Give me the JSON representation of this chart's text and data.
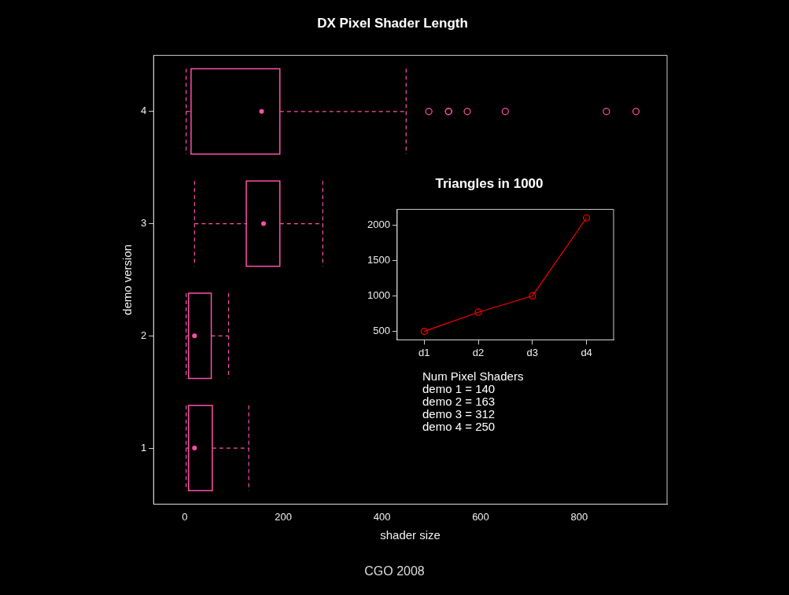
{
  "chart_data": [
    {
      "type": "box",
      "title": "DX Pixel Shader Length",
      "xlabel": "shader size",
      "ylabel": "demo version",
      "orientation": "horizontal",
      "categories": [
        "4",
        "3",
        "2",
        "1"
      ],
      "color": "#ff4fa8",
      "boxes": [
        {
          "low": 3,
          "q1": 13,
          "median": 156,
          "q3": 193,
          "high": 449,
          "outliers": [
            495,
            535,
            535,
            573,
            650,
            855,
            915
          ]
        },
        {
          "low": 20,
          "q1": 125,
          "median": 160,
          "q3": 193,
          "high": 280
        },
        {
          "low": 3,
          "q1": 8,
          "median": 20,
          "q3": 54,
          "high": 89
        },
        {
          "low": 3,
          "q1": 8,
          "median": 20,
          "q3": 56,
          "high": 130
        }
      ],
      "xlim": [
        -63,
        978
      ],
      "xticks": [
        0,
        200,
        400,
        600,
        800
      ],
      "grid": false,
      "legend": false,
      "annotations": [
        "CGO 2008"
      ]
    },
    {
      "type": "line",
      "title": "Triangles in 1000",
      "categories": [
        "d1",
        "d2",
        "d3",
        "d4"
      ],
      "series": [
        {
          "color": "#ff0000",
          "values": [
            500,
            770,
            1000,
            2100
          ]
        }
      ],
      "ylim": [
        380,
        2220
      ],
      "yticks": [
        500,
        1000,
        1500,
        2000
      ],
      "marker": "circle",
      "grid": false,
      "legend": false,
      "annotations": [
        "Num Pixel Shaders",
        "demo 1 =  140",
        "demo 2 =  163",
        "demo 3 =  312",
        "demo 4 =  250"
      ]
    }
  ]
}
